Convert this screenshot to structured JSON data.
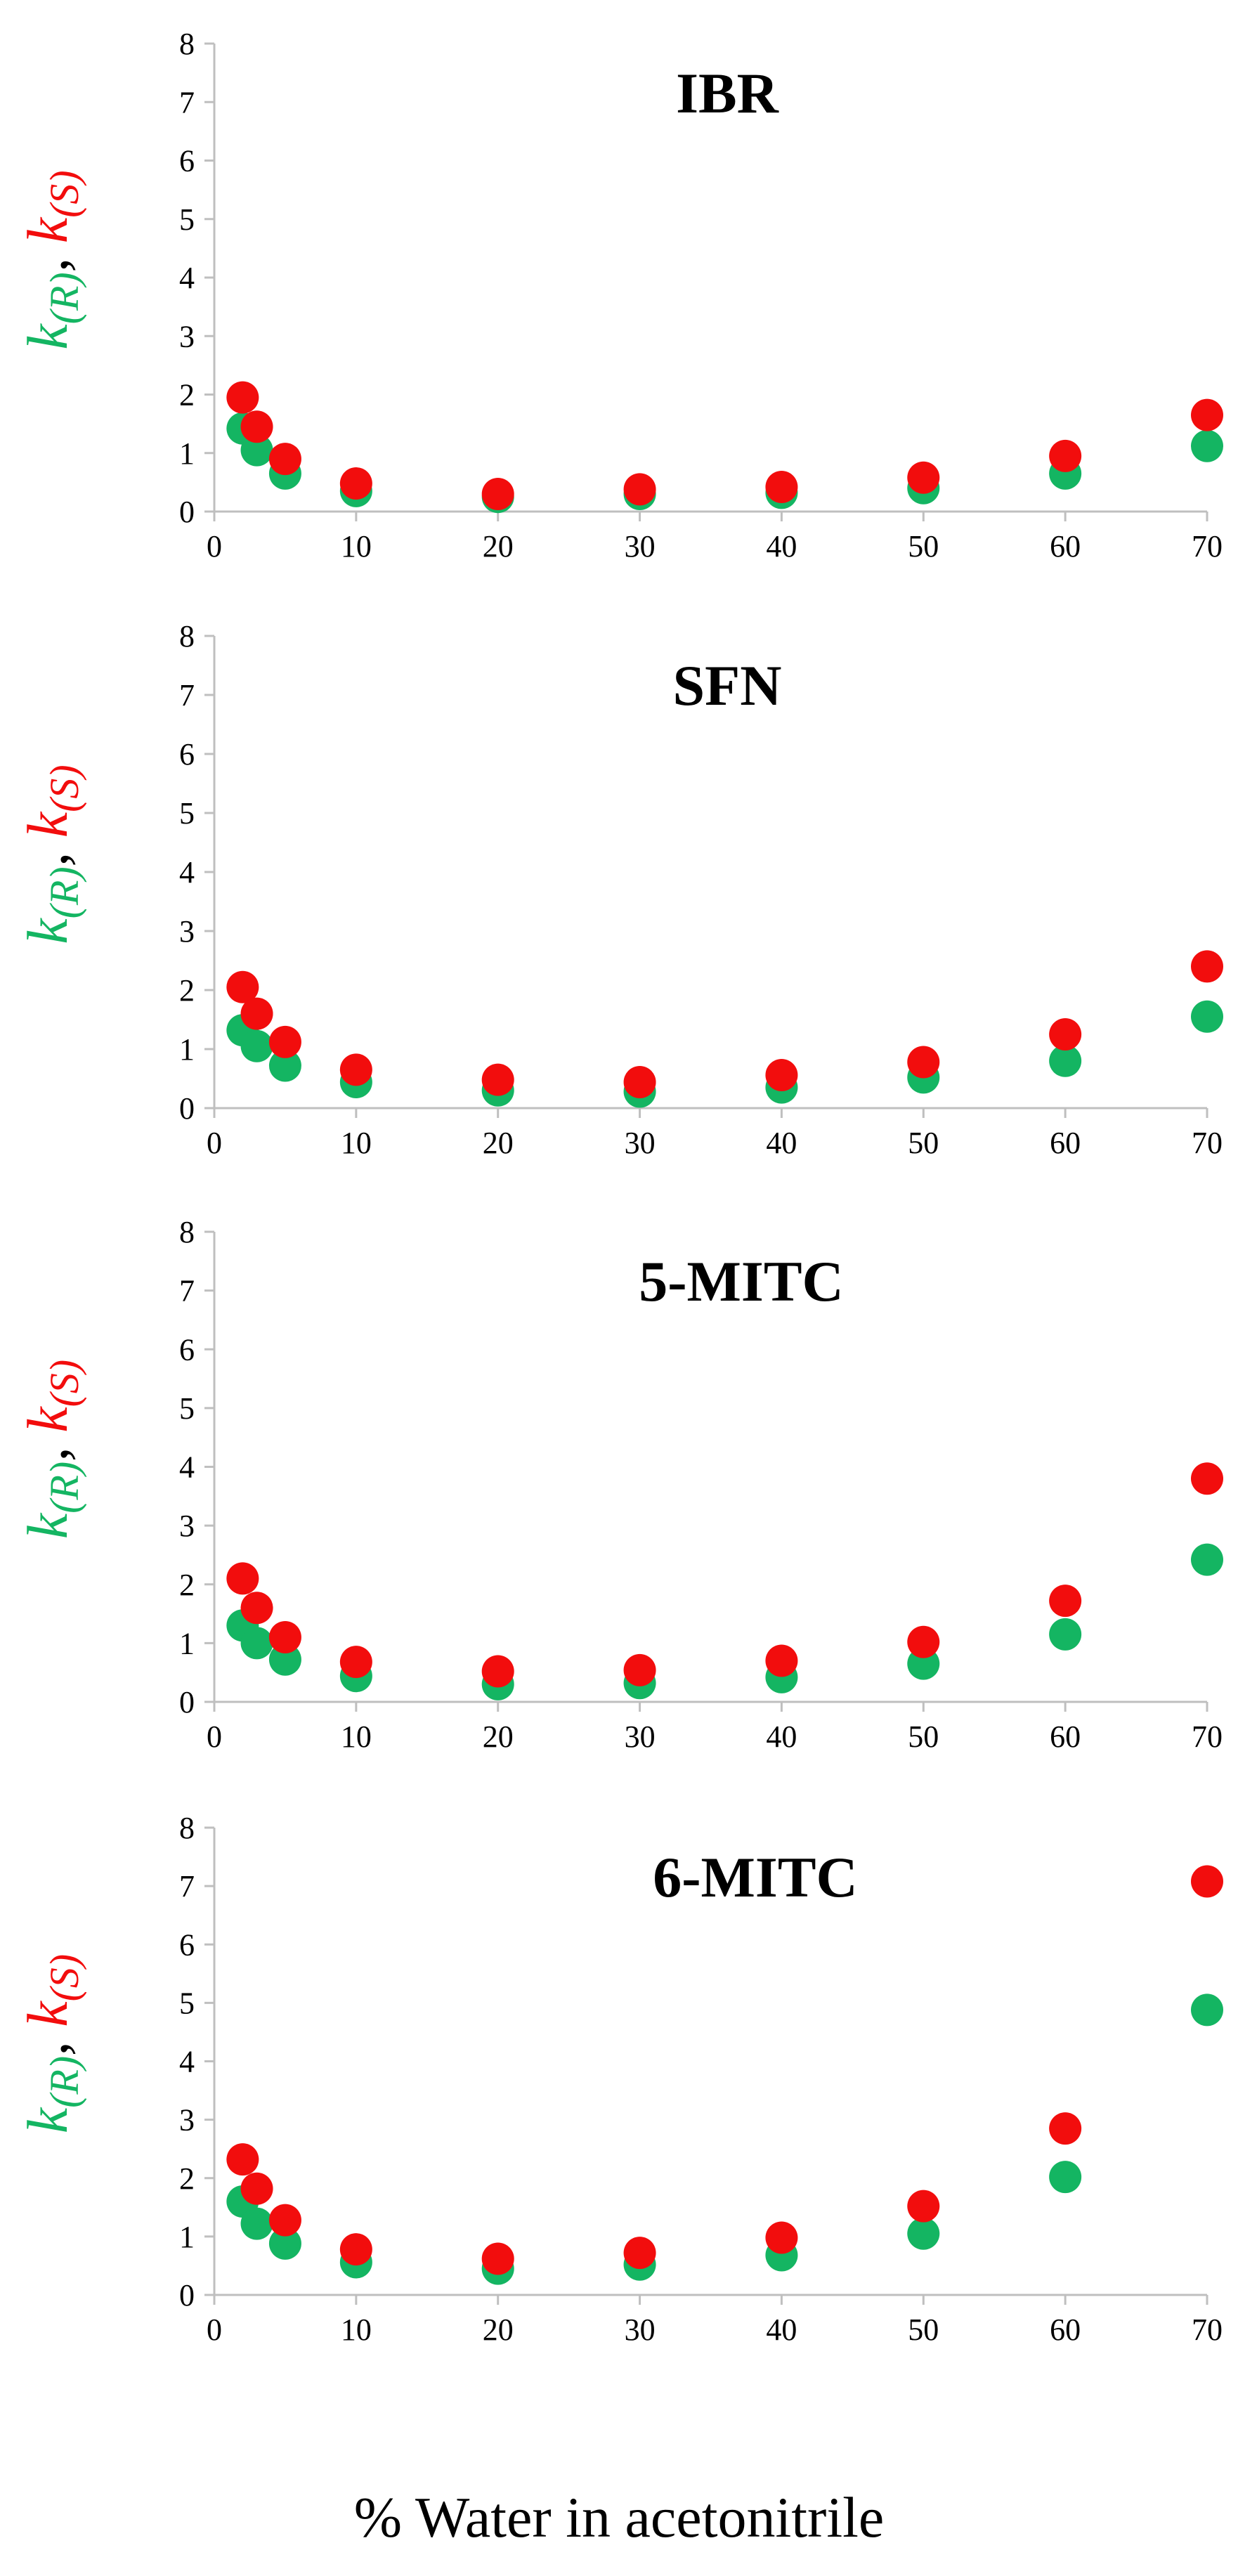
{
  "figure": {
    "xlabel": "% Water in acetonitrile",
    "colors": {
      "R": "#14b562",
      "S": "#f20d0d",
      "axis": "#bfbfbf"
    }
  },
  "chart_data": [
    {
      "type": "scatter",
      "title": "IBR",
      "ylabel_parts": {
        "r_letter": "k",
        "r_sub": "(R)",
        "sep": ", ",
        "s_letter": "k",
        "s_sub": "(S)"
      },
      "xlim": [
        0,
        70
      ],
      "ylim": [
        0,
        8
      ],
      "xticks": [
        0,
        10,
        20,
        30,
        40,
        50,
        60,
        70
      ],
      "yticks": [
        0,
        1,
        2,
        3,
        4,
        5,
        6,
        7,
        8
      ],
      "x": [
        2,
        3,
        5,
        10,
        20,
        30,
        40,
        50,
        60,
        70
      ],
      "series": [
        {
          "name": "k(R)",
          "color": "#14b562",
          "values": [
            1.42,
            1.05,
            0.65,
            0.35,
            0.25,
            0.3,
            0.32,
            0.4,
            0.65,
            1.12
          ]
        },
        {
          "name": "k(S)",
          "color": "#f20d0d",
          "values": [
            1.95,
            1.45,
            0.9,
            0.48,
            0.3,
            0.38,
            0.42,
            0.58,
            0.95,
            1.65
          ]
        }
      ]
    },
    {
      "type": "scatter",
      "title": "SFN",
      "ylabel_parts": {
        "r_letter": "k",
        "r_sub": "(R)",
        "sep": ", ",
        "s_letter": "k",
        "s_sub": "(S)"
      },
      "xlim": [
        0,
        70
      ],
      "ylim": [
        0,
        8
      ],
      "xticks": [
        0,
        10,
        20,
        30,
        40,
        50,
        60,
        70
      ],
      "yticks": [
        0,
        1,
        2,
        3,
        4,
        5,
        6,
        7,
        8
      ],
      "x": [
        2,
        3,
        5,
        10,
        20,
        30,
        40,
        50,
        60,
        70
      ],
      "series": [
        {
          "name": "k(R)",
          "color": "#14b562",
          "values": [
            1.32,
            1.05,
            0.72,
            0.44,
            0.3,
            0.28,
            0.35,
            0.52,
            0.8,
            1.55
          ]
        },
        {
          "name": "k(S)",
          "color": "#f20d0d",
          "values": [
            2.05,
            1.6,
            1.12,
            0.65,
            0.48,
            0.44,
            0.56,
            0.78,
            1.25,
            2.4
          ]
        }
      ]
    },
    {
      "type": "scatter",
      "title": "5-MITC",
      "ylabel_parts": {
        "r_letter": "k",
        "r_sub": "(R)",
        "sep": ", ",
        "s_letter": "k",
        "s_sub": "(S)"
      },
      "xlim": [
        0,
        70
      ],
      "ylim": [
        0,
        8
      ],
      "xticks": [
        0,
        10,
        20,
        30,
        40,
        50,
        60,
        70
      ],
      "yticks": [
        0,
        1,
        2,
        3,
        4,
        5,
        6,
        7,
        8
      ],
      "x": [
        2,
        3,
        5,
        10,
        20,
        30,
        40,
        50,
        60,
        70
      ],
      "series": [
        {
          "name": "k(R)",
          "color": "#14b562",
          "values": [
            1.3,
            1.0,
            0.72,
            0.44,
            0.3,
            0.32,
            0.42,
            0.65,
            1.15,
            2.42
          ]
        },
        {
          "name": "k(S)",
          "color": "#f20d0d",
          "values": [
            2.1,
            1.6,
            1.1,
            0.68,
            0.52,
            0.54,
            0.7,
            1.02,
            1.72,
            3.8
          ]
        }
      ]
    },
    {
      "type": "scatter",
      "title": "6-MITC",
      "ylabel_parts": {
        "r_letter": "k",
        "r_sub": "(R)",
        "sep": ", ",
        "s_letter": "k",
        "s_sub": "(S)"
      },
      "xlim": [
        0,
        70
      ],
      "ylim": [
        0,
        8
      ],
      "xticks": [
        0,
        10,
        20,
        30,
        40,
        50,
        60,
        70
      ],
      "yticks": [
        0,
        1,
        2,
        3,
        4,
        5,
        6,
        7,
        8
      ],
      "x": [
        2,
        3,
        5,
        10,
        20,
        30,
        40,
        50,
        60,
        70
      ],
      "series": [
        {
          "name": "k(R)",
          "color": "#14b562",
          "values": [
            1.6,
            1.22,
            0.88,
            0.56,
            0.45,
            0.52,
            0.68,
            1.05,
            2.02,
            4.88
          ]
        },
        {
          "name": "k(S)",
          "color": "#f20d0d",
          "values": [
            2.32,
            1.82,
            1.28,
            0.78,
            0.62,
            0.72,
            0.98,
            1.52,
            2.85,
            7.08
          ]
        }
      ]
    }
  ]
}
